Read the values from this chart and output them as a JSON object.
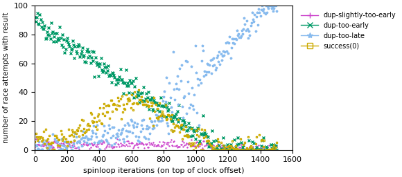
{
  "title": "",
  "xlabel": "spinloop iterations (on top of clock offset)",
  "ylabel": "number of race attempts with result",
  "xlim": [
    0,
    1600
  ],
  "ylim": [
    0,
    100
  ],
  "xticks": [
    0,
    200,
    400,
    600,
    800,
    1000,
    1200,
    1400,
    1600
  ],
  "yticks": [
    0,
    20,
    40,
    60,
    80,
    100
  ],
  "legend_labels": [
    "dup-slightly-too-early",
    "dup-too-early",
    "dup-too-late",
    "success(0)"
  ],
  "colors": {
    "slightly_early": "#cc44cc",
    "too_early": "#009966",
    "too_late": "#88bbee",
    "success": "#ccaa00"
  },
  "markers": {
    "slightly_early": "+",
    "too_early": "x",
    "too_late": "*",
    "success": "s"
  },
  "figsize": [
    5.8,
    2.56
  ],
  "dpi": 100,
  "seed": 42
}
